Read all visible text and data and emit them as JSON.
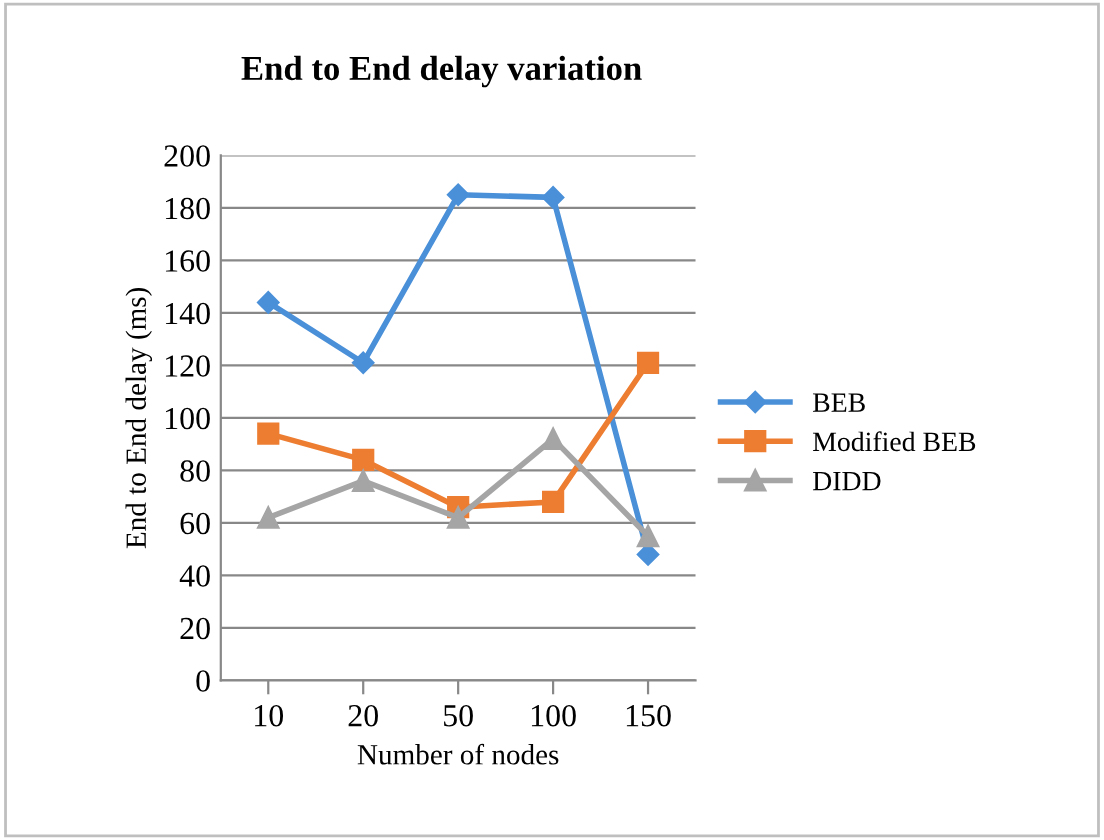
{
  "chart_data": {
    "type": "line",
    "title": "End to End delay variation",
    "xlabel": "Number of nodes",
    "ylabel": "End to End delay (ms)",
    "categories": [
      "10",
      "20",
      "50",
      "100",
      "150"
    ],
    "series": [
      {
        "name": "BEB",
        "color": "#4a90d9",
        "marker": "diamond",
        "values": [
          144,
          121,
          185,
          184,
          48
        ]
      },
      {
        "name": "Modified BEB",
        "color": "#ed7d31",
        "marker": "square",
        "values": [
          94,
          84,
          66,
          68,
          121
        ]
      },
      {
        "name": "DIDD",
        "color": "#a5a5a5",
        "marker": "triangle",
        "values": [
          62,
          76,
          62,
          92,
          55
        ]
      }
    ],
    "ylim": [
      0,
      200
    ],
    "yticks": [
      0,
      20,
      40,
      60,
      80,
      100,
      120,
      140,
      160,
      180,
      200
    ],
    "grid": "y",
    "legend": "right"
  }
}
